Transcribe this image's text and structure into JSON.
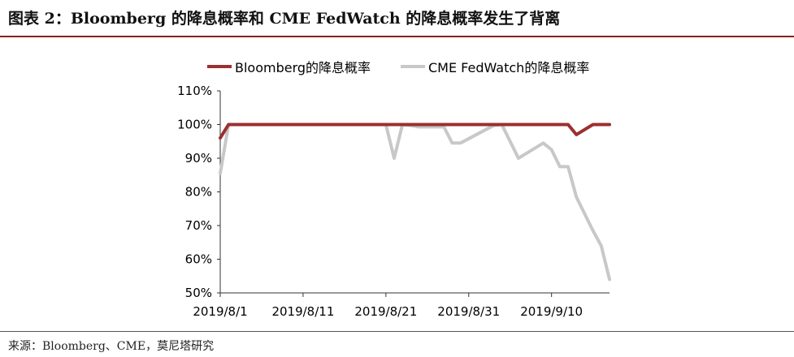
{
  "header": {
    "title": "图表 2：Bloomberg 的降息概率和 CME FedWatch 的降息概率发生了背离"
  },
  "footer": {
    "source": "来源：Bloomberg、CME，莫尼塔研究"
  },
  "chart_data": {
    "type": "line",
    "x_tick_labels": [
      "2019/8/1",
      "2019/8/11",
      "2019/8/21",
      "2019/8/31",
      "2019/9/10"
    ],
    "y_tick_labels": [
      "50%",
      "60%",
      "70%",
      "80%",
      "90%",
      "100%",
      "110%"
    ],
    "ylim": [
      50,
      110
    ],
    "xlim": [
      0,
      47
    ],
    "grid": false,
    "legend_position": "top-center",
    "series": [
      {
        "name": "Bloomberg的降息概率",
        "color": "#9b3030",
        "points": [
          [
            0,
            96
          ],
          [
            1,
            100
          ],
          [
            20,
            100
          ],
          [
            42,
            100
          ],
          [
            43,
            97
          ],
          [
            45,
            100
          ],
          [
            47,
            100
          ]
        ]
      },
      {
        "name": "CME FedWatch的降息概率",
        "color": "#c8c8c8",
        "points": [
          [
            0,
            85.5
          ],
          [
            1,
            100
          ],
          [
            20,
            100
          ],
          [
            21,
            90
          ],
          [
            22,
            100
          ],
          [
            23,
            99.7
          ],
          [
            24,
            99.3
          ],
          [
            27,
            99.3
          ],
          [
            28,
            94.5
          ],
          [
            29,
            94.5
          ],
          [
            33,
            99.7
          ],
          [
            34,
            100
          ],
          [
            35,
            95
          ],
          [
            36,
            90
          ],
          [
            37,
            91.5
          ],
          [
            38,
            93
          ],
          [
            39,
            94.5
          ],
          [
            40,
            92.5
          ],
          [
            41,
            87.5
          ],
          [
            42,
            87.5
          ],
          [
            43,
            78.5
          ],
          [
            44,
            73.5
          ],
          [
            45,
            68.5
          ],
          [
            46,
            64
          ],
          [
            47,
            54
          ]
        ]
      }
    ]
  }
}
